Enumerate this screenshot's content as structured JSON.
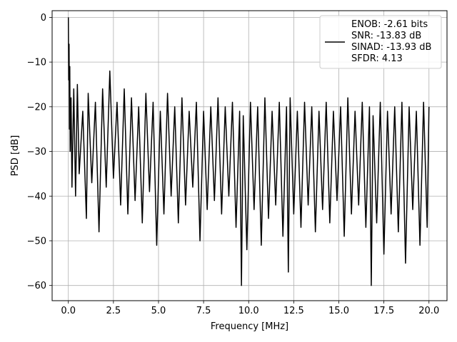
{
  "chart_data": {
    "type": "line",
    "title": "",
    "xlabel": "Frequency [MHz]",
    "ylabel": "PSD [dB]",
    "xlim": [
      -0.9,
      21.0
    ],
    "ylim": [
      -63.4,
      1.5
    ],
    "xticks": [
      0.0,
      2.5,
      5.0,
      7.5,
      10.0,
      12.5,
      15.0,
      17.5,
      20.0
    ],
    "xtick_labels": [
      "0.0",
      "2.5",
      "5.0",
      "7.5",
      "10.0",
      "12.5",
      "15.0",
      "17.5",
      "20.0"
    ],
    "yticks": [
      0,
      -10,
      -20,
      -30,
      -40,
      -50,
      -60
    ],
    "ytick_labels": [
      "0",
      "−10",
      "−20",
      "−30",
      "−40",
      "−50",
      "−60"
    ],
    "grid": true,
    "legend_position": "upper right",
    "legend_lines": [
      "ENOB: -2.61 bits",
      "SNR: -13.83 dB",
      "SINAD: -13.93 dB",
      "SFDR: 4.13"
    ],
    "series": [
      {
        "color": "#000000",
        "x": [
          0.0,
          0.02,
          0.04,
          0.06,
          0.08,
          0.1,
          0.15,
          0.2,
          0.3,
          0.4,
          0.5,
          0.6,
          0.8,
          1.0,
          1.1,
          1.3,
          1.5,
          1.7,
          1.9,
          2.1,
          2.3,
          2.5,
          2.7,
          2.9,
          3.1,
          3.3,
          3.5,
          3.7,
          3.9,
          4.1,
          4.3,
          4.5,
          4.7,
          4.9,
          5.1,
          5.3,
          5.5,
          5.7,
          5.9,
          6.1,
          6.3,
          6.5,
          6.7,
          6.9,
          7.1,
          7.3,
          7.5,
          7.7,
          7.9,
          8.1,
          8.3,
          8.5,
          8.7,
          8.9,
          9.1,
          9.3,
          9.5,
          9.6,
          9.7,
          9.9,
          10.1,
          10.3,
          10.5,
          10.7,
          10.9,
          11.1,
          11.3,
          11.5,
          11.7,
          11.9,
          12.1,
          12.2,
          12.3,
          12.5,
          12.7,
          12.9,
          13.1,
          13.3,
          13.5,
          13.7,
          13.9,
          14.1,
          14.3,
          14.5,
          14.7,
          14.9,
          15.1,
          15.3,
          15.5,
          15.7,
          15.9,
          16.1,
          16.3,
          16.5,
          16.7,
          16.8,
          16.9,
          17.1,
          17.3,
          17.5,
          17.7,
          17.9,
          18.1,
          18.3,
          18.5,
          18.7,
          18.9,
          19.1,
          19.3,
          19.5,
          19.7,
          19.9,
          20.0
        ],
        "y": [
          0.0,
          -14,
          -6,
          -25,
          -11,
          -30,
          -18,
          -38,
          -16,
          -40,
          -15,
          -35,
          -21,
          -45,
          -17,
          -37,
          -19,
          -48,
          -16,
          -38,
          -12,
          -36,
          -19,
          -42,
          -16,
          -44,
          -18,
          -41,
          -20,
          -46,
          -17,
          -39,
          -19,
          -51,
          -21,
          -44,
          -17,
          -40,
          -20,
          -46,
          -18,
          -42,
          -21,
          -38,
          -19,
          -50,
          -21,
          -43,
          -20,
          -41,
          -18,
          -44,
          -20,
          -40,
          -19,
          -47,
          -21,
          -60,
          -22,
          -52,
          -19,
          -43,
          -20,
          -51,
          -18,
          -45,
          -21,
          -42,
          -19,
          -49,
          -20,
          -57,
          -18,
          -44,
          -21,
          -47,
          -19,
          -42,
          -20,
          -48,
          -21,
          -43,
          -19,
          -46,
          -21,
          -41,
          -20,
          -49,
          -18,
          -44,
          -21,
          -42,
          -19,
          -47,
          -20,
          -60,
          -22,
          -46,
          -19,
          -53,
          -21,
          -44,
          -20,
          -48,
          -19,
          -55,
          -20,
          -43,
          -21,
          -51,
          -19,
          -47,
          -20
        ]
      }
    ]
  }
}
